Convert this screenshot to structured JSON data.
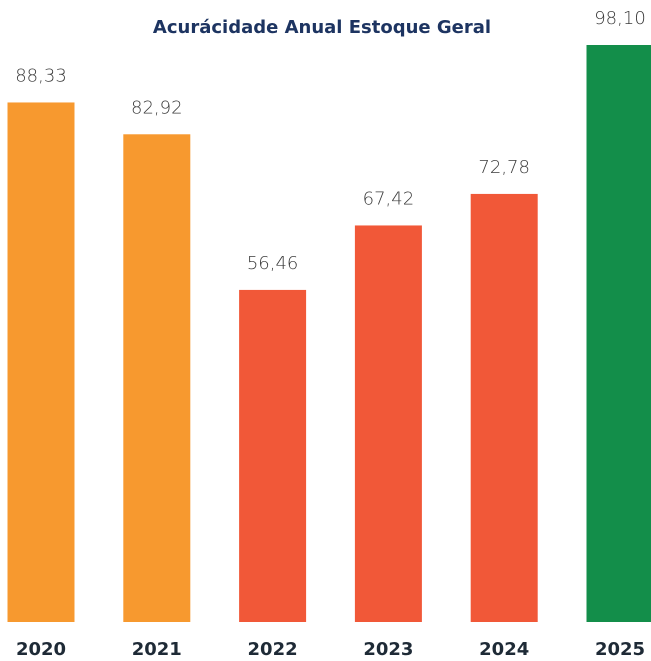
{
  "chart_data": {
    "type": "bar",
    "title": "Acurácidade Anual Estoque Geral",
    "categories": [
      "2020",
      "2021",
      "2022",
      "2023",
      "2024",
      "2025"
    ],
    "values": [
      88.33,
      82.92,
      56.46,
      67.42,
      72.78,
      98.1
    ],
    "value_labels": [
      "88,33",
      "82,92",
      "56,46",
      "67,42",
      "72,78",
      "98,10"
    ],
    "colors": [
      "#f7992f",
      "#f7992f",
      "#f15838",
      "#f15838",
      "#f15838",
      "#138e4a"
    ]
  }
}
